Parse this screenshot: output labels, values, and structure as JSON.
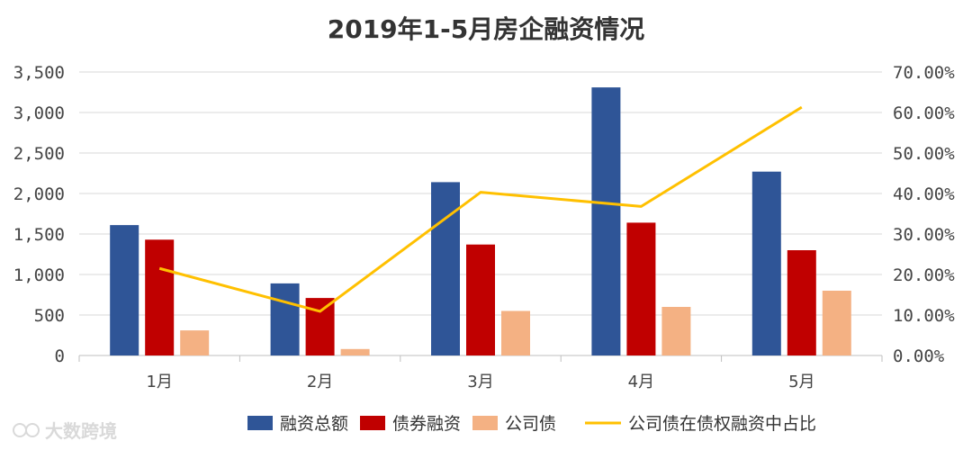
{
  "chart_data": {
    "type": "bar",
    "title": "2019年1-5月房企融资情况",
    "categories": [
      "1月",
      "2月",
      "3月",
      "4月",
      "5月"
    ],
    "series": [
      {
        "name": "融资总额",
        "type": "bar",
        "axis": "left",
        "color": "#2f5597",
        "values": [
          1610,
          890,
          2140,
          3310,
          2270
        ]
      },
      {
        "name": "债券融资",
        "type": "bar",
        "axis": "left",
        "color": "#c00000",
        "values": [
          1430,
          710,
          1370,
          1640,
          1300
        ]
      },
      {
        "name": "公司债",
        "type": "bar",
        "axis": "left",
        "color": "#f4b183",
        "values": [
          310,
          80,
          550,
          600,
          800
        ]
      },
      {
        "name": "公司债在债权融资中占比",
        "type": "line",
        "axis": "right",
        "color": "#ffc000",
        "values": [
          21.5,
          10.9,
          40.3,
          36.8,
          61.3
        ]
      }
    ],
    "yleft": {
      "ylim": [
        0,
        3500
      ],
      "ticks": [
        "0",
        "500",
        "1,000",
        "1,500",
        "2,000",
        "2,500",
        "3,000",
        "3,500"
      ]
    },
    "yright": {
      "ylim": [
        0,
        70
      ],
      "unit": "%",
      "ticks": [
        "0.00%",
        "10.00%",
        "20.00%",
        "30.00%",
        "40.00%",
        "50.00%",
        "60.00%",
        "70.00%"
      ]
    },
    "grid": true,
    "legend": "bottom"
  },
  "watermark": "大数跨境"
}
